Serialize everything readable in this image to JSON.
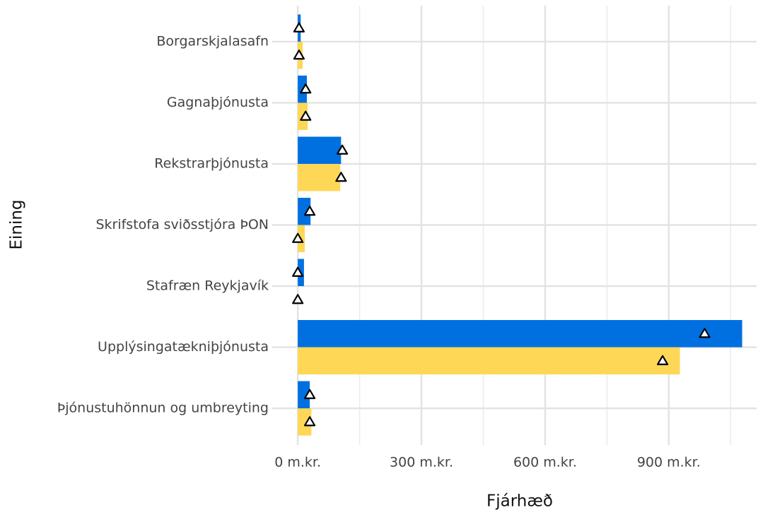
{
  "chart_data": {
    "type": "bar",
    "orientation": "horizontal",
    "xlabel": "Fjárhæð",
    "ylabel": "Eining",
    "categories": [
      "Borgarskjalasafn",
      "Gagnaþjónusta",
      "Rekstrarþjónusta",
      "Skrifstofa sviðsstjóra ÞON",
      "Stafræn Reykjavík",
      "Upplýsingatækniþjónusta",
      "Þjónustuhönnun og umbreyting"
    ],
    "series": [
      {
        "color": "#0070e0",
        "values": [
          7,
          22,
          105,
          31,
          15,
          1078,
          29
        ],
        "marker_values": [
          3,
          19,
          108,
          29,
          0,
          987,
          29
        ]
      },
      {
        "color": "#fed757",
        "values": [
          12,
          24,
          103,
          17,
          0,
          927,
          33
        ],
        "marker_values": [
          3,
          19,
          105,
          0,
          0,
          885,
          29
        ]
      }
    ],
    "xlim": [
      -62,
      1113
    ],
    "xticks": [
      {
        "value": 0,
        "label": "0 m.kr."
      },
      {
        "value": 300,
        "label": "300 m.kr."
      },
      {
        "value": 600,
        "label": "600 m.kr."
      },
      {
        "value": 900,
        "label": "900 m.kr."
      }
    ],
    "xminorticks": [
      150,
      450,
      750,
      1050
    ],
    "grid": true
  }
}
